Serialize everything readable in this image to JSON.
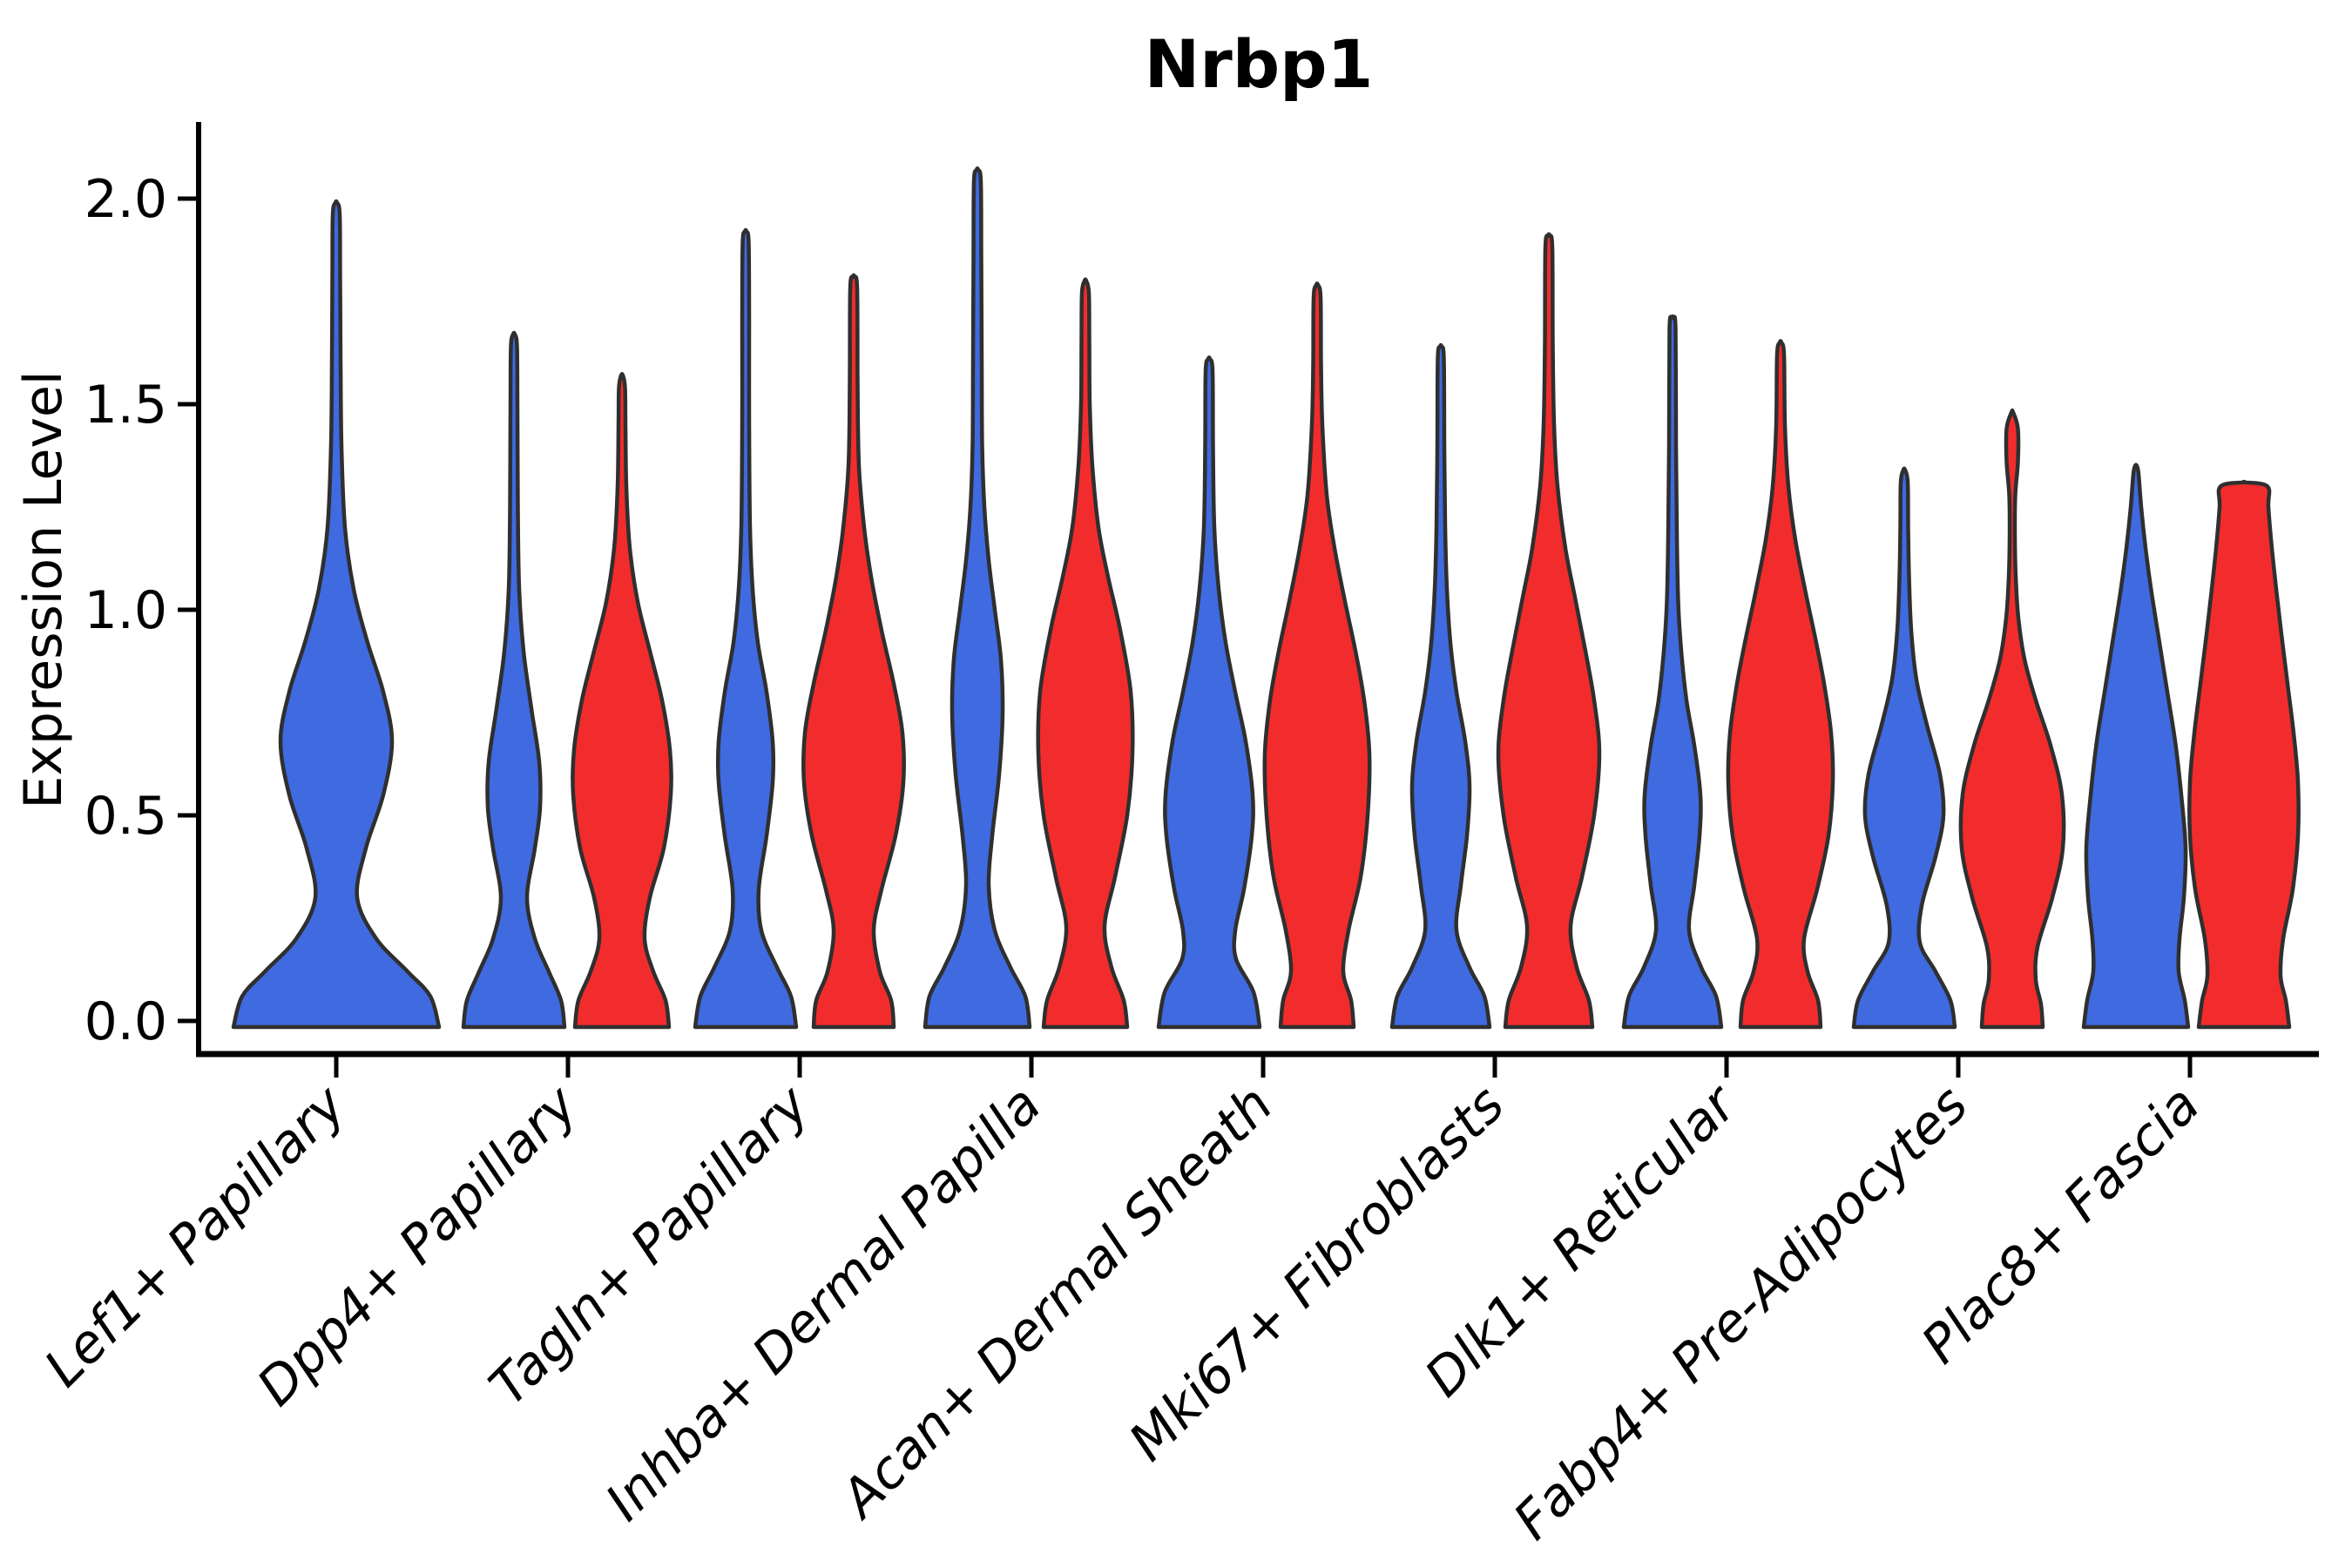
{
  "title": "Nrbp1",
  "axes": {
    "ylabel": "Expression Level",
    "ytick_labels": [
      "0.0",
      "0.5",
      "1.0",
      "1.5",
      "2.0"
    ]
  },
  "style": {
    "background": "#FFFFFF",
    "axis_color": "#000000",
    "violin_stroke": "#2F2F2F",
    "blue": "#3F6AE0",
    "red": "#F22C2C"
  },
  "chart_data": {
    "type": "violin",
    "title": "Nrbp1",
    "xlabel": "",
    "ylabel": "Expression Level",
    "ylim": [
      0,
      2.1
    ],
    "yticks": [
      0,
      0.5,
      1.0,
      1.5,
      2.0
    ],
    "grid": false,
    "legend_position": "none",
    "split_colors": {
      "blue": "#3F6AE0",
      "red": "#F22C2C"
    },
    "categories": [
      "Lef1+ Papillary",
      "Dpp4+ Papillary",
      "Tagln+ Papillary",
      "Inhba+ Dermal Papilla",
      "Acan+ Dermal Sheath",
      "Mki67+ Fibroblasts",
      "Dlk1+ Reticular",
      "Fabp4+ Pre-Adipocytes",
      "Plac8+ Fascia"
    ],
    "violins": [
      {
        "category_index": 0,
        "split": "single",
        "color": "blue",
        "peak": 1.99,
        "profile": [
          [
            0,
            118
          ],
          [
            0.06,
            108
          ],
          [
            0.12,
            82
          ],
          [
            0.2,
            46
          ],
          [
            0.3,
            24
          ],
          [
            0.42,
            34
          ],
          [
            0.55,
            54
          ],
          [
            0.68,
            64
          ],
          [
            0.8,
            54
          ],
          [
            0.92,
            36
          ],
          [
            1.05,
            20
          ],
          [
            1.2,
            10
          ],
          [
            1.4,
            6
          ],
          [
            1.6,
            5
          ],
          [
            1.8,
            4.5
          ],
          [
            1.96,
            4
          ],
          [
            1.99,
            1
          ]
        ]
      },
      {
        "category_index": 1,
        "split": "left",
        "color": "blue",
        "peak": 1.67,
        "profile": [
          [
            0,
            58
          ],
          [
            0.05,
            54
          ],
          [
            0.12,
            40
          ],
          [
            0.2,
            24
          ],
          [
            0.3,
            15
          ],
          [
            0.42,
            24
          ],
          [
            0.52,
            30
          ],
          [
            0.63,
            29
          ],
          [
            0.76,
            20
          ],
          [
            0.9,
            11
          ],
          [
            1.05,
            6
          ],
          [
            1.25,
            4.5
          ],
          [
            1.5,
            4
          ],
          [
            1.64,
            3.5
          ],
          [
            1.67,
            1
          ]
        ]
      },
      {
        "category_index": 1,
        "split": "right",
        "color": "red",
        "peak": 1.57,
        "profile": [
          [
            0,
            54
          ],
          [
            0.05,
            50
          ],
          [
            0.12,
            36
          ],
          [
            0.2,
            26
          ],
          [
            0.3,
            32
          ],
          [
            0.42,
            48
          ],
          [
            0.55,
            56
          ],
          [
            0.66,
            55
          ],
          [
            0.78,
            46
          ],
          [
            0.9,
            32
          ],
          [
            1.02,
            18
          ],
          [
            1.15,
            9
          ],
          [
            1.3,
            5
          ],
          [
            1.45,
            4
          ],
          [
            1.54,
            3.5
          ],
          [
            1.57,
            1
          ]
        ]
      },
      {
        "category_index": 2,
        "split": "left",
        "color": "blue",
        "peak": 1.92,
        "profile": [
          [
            0,
            58
          ],
          [
            0.06,
            52
          ],
          [
            0.13,
            36
          ],
          [
            0.22,
            18
          ],
          [
            0.32,
            15
          ],
          [
            0.45,
            24
          ],
          [
            0.58,
            31
          ],
          [
            0.68,
            31
          ],
          [
            0.8,
            24
          ],
          [
            0.92,
            14
          ],
          [
            1.05,
            8
          ],
          [
            1.2,
            5
          ],
          [
            1.45,
            4
          ],
          [
            1.7,
            4
          ],
          [
            1.89,
            3.5
          ],
          [
            1.92,
            1
          ]
        ]
      },
      {
        "category_index": 2,
        "split": "right",
        "color": "red",
        "peak": 1.81,
        "profile": [
          [
            0,
            46
          ],
          [
            0.05,
            43
          ],
          [
            0.12,
            30
          ],
          [
            0.22,
            23
          ],
          [
            0.32,
            32
          ],
          [
            0.45,
            48
          ],
          [
            0.58,
            57
          ],
          [
            0.7,
            56
          ],
          [
            0.82,
            46
          ],
          [
            0.95,
            32
          ],
          [
            1.08,
            20
          ],
          [
            1.2,
            12
          ],
          [
            1.35,
            6
          ],
          [
            1.55,
            4.5
          ],
          [
            1.78,
            4
          ],
          [
            1.81,
            1
          ]
        ]
      },
      {
        "category_index": 3,
        "split": "left",
        "color": "blue",
        "peak": 2.07,
        "profile": [
          [
            0,
            60
          ],
          [
            0.06,
            55
          ],
          [
            0.13,
            38
          ],
          [
            0.22,
            20
          ],
          [
            0.33,
            13
          ],
          [
            0.45,
            17
          ],
          [
            0.6,
            25
          ],
          [
            0.75,
            29
          ],
          [
            0.88,
            27
          ],
          [
            1.0,
            20
          ],
          [
            1.12,
            13
          ],
          [
            1.25,
            8
          ],
          [
            1.4,
            5.5
          ],
          [
            1.6,
            5
          ],
          [
            1.85,
            4.5
          ],
          [
            2.04,
            4
          ],
          [
            2.07,
            1
          ]
        ]
      },
      {
        "category_index": 3,
        "split": "right",
        "color": "red",
        "peak": 1.8,
        "profile": [
          [
            0,
            48
          ],
          [
            0.05,
            44
          ],
          [
            0.13,
            30
          ],
          [
            0.23,
            22
          ],
          [
            0.35,
            34
          ],
          [
            0.5,
            48
          ],
          [
            0.65,
            54
          ],
          [
            0.8,
            52
          ],
          [
            0.95,
            40
          ],
          [
            1.08,
            26
          ],
          [
            1.2,
            15
          ],
          [
            1.35,
            8
          ],
          [
            1.5,
            5
          ],
          [
            1.65,
            4.5
          ],
          [
            1.77,
            4
          ],
          [
            1.8,
            1
          ]
        ]
      },
      {
        "category_index": 4,
        "split": "left",
        "color": "blue",
        "peak": 1.61,
        "profile": [
          [
            0,
            58
          ],
          [
            0.07,
            51
          ],
          [
            0.15,
            31
          ],
          [
            0.22,
            30
          ],
          [
            0.32,
            40
          ],
          [
            0.45,
            49
          ],
          [
            0.55,
            50
          ],
          [
            0.68,
            42
          ],
          [
            0.8,
            30
          ],
          [
            0.92,
            19
          ],
          [
            1.05,
            11
          ],
          [
            1.2,
            6
          ],
          [
            1.4,
            4.5
          ],
          [
            1.58,
            4
          ],
          [
            1.61,
            1
          ]
        ]
      },
      {
        "category_index": 4,
        "split": "right",
        "color": "red",
        "peak": 1.79,
        "profile": [
          [
            0,
            42
          ],
          [
            0.05,
            39
          ],
          [
            0.12,
            30
          ],
          [
            0.22,
            36
          ],
          [
            0.35,
            50
          ],
          [
            0.5,
            58
          ],
          [
            0.65,
            60
          ],
          [
            0.78,
            54
          ],
          [
            0.9,
            44
          ],
          [
            1.02,
            32
          ],
          [
            1.15,
            20
          ],
          [
            1.28,
            11
          ],
          [
            1.45,
            6
          ],
          [
            1.6,
            4.5
          ],
          [
            1.76,
            4
          ],
          [
            1.79,
            1
          ]
        ]
      },
      {
        "category_index": 5,
        "split": "left",
        "color": "blue",
        "peak": 1.64,
        "profile": [
          [
            0,
            56
          ],
          [
            0.06,
            50
          ],
          [
            0.13,
            33
          ],
          [
            0.22,
            18
          ],
          [
            0.33,
            23
          ],
          [
            0.45,
            30
          ],
          [
            0.57,
            33
          ],
          [
            0.68,
            28
          ],
          [
            0.8,
            18
          ],
          [
            0.92,
            11
          ],
          [
            1.05,
            7
          ],
          [
            1.2,
            5
          ],
          [
            1.4,
            4
          ],
          [
            1.61,
            3.5
          ],
          [
            1.64,
            1
          ]
        ]
      },
      {
        "category_index": 5,
        "split": "right",
        "color": "red",
        "peak": 1.91,
        "profile": [
          [
            0,
            50
          ],
          [
            0.05,
            46
          ],
          [
            0.13,
            32
          ],
          [
            0.23,
            25
          ],
          [
            0.35,
            38
          ],
          [
            0.5,
            52
          ],
          [
            0.65,
            58
          ],
          [
            0.78,
            52
          ],
          [
            0.9,
            42
          ],
          [
            1.03,
            30
          ],
          [
            1.15,
            19
          ],
          [
            1.3,
            10
          ],
          [
            1.45,
            6
          ],
          [
            1.65,
            4.5
          ],
          [
            1.88,
            4
          ],
          [
            1.91,
            1
          ]
        ]
      },
      {
        "category_index": 6,
        "split": "left",
        "color": "blue",
        "peak": 1.71,
        "profile": [
          [
            0,
            56
          ],
          [
            0.06,
            50
          ],
          [
            0.13,
            33
          ],
          [
            0.22,
            19
          ],
          [
            0.33,
            25
          ],
          [
            0.45,
            31
          ],
          [
            0.55,
            32
          ],
          [
            0.67,
            25
          ],
          [
            0.78,
            16
          ],
          [
            0.9,
            10
          ],
          [
            1.02,
            6.5
          ],
          [
            1.18,
            5
          ],
          [
            1.4,
            4
          ],
          [
            1.68,
            3.5
          ],
          [
            1.71,
            1
          ]
        ]
      },
      {
        "category_index": 6,
        "split": "right",
        "color": "red",
        "peak": 1.65,
        "profile": [
          [
            0,
            46
          ],
          [
            0.05,
            43
          ],
          [
            0.12,
            31
          ],
          [
            0.2,
            27
          ],
          [
            0.32,
            42
          ],
          [
            0.45,
            55
          ],
          [
            0.58,
            60
          ],
          [
            0.7,
            58
          ],
          [
            0.82,
            50
          ],
          [
            0.93,
            40
          ],
          [
            1.05,
            28
          ],
          [
            1.17,
            17
          ],
          [
            1.3,
            9
          ],
          [
            1.45,
            5
          ],
          [
            1.62,
            4
          ],
          [
            1.65,
            1
          ]
        ]
      },
      {
        "category_index": 7,
        "split": "left",
        "color": "blue",
        "peak": 1.34,
        "profile": [
          [
            0,
            58
          ],
          [
            0.05,
            53
          ],
          [
            0.12,
            36
          ],
          [
            0.19,
            18
          ],
          [
            0.28,
            20
          ],
          [
            0.4,
            36
          ],
          [
            0.5,
            45
          ],
          [
            0.6,
            41
          ],
          [
            0.72,
            26
          ],
          [
            0.83,
            14
          ],
          [
            0.95,
            8
          ],
          [
            1.08,
            5.5
          ],
          [
            1.2,
            4.5
          ],
          [
            1.31,
            4
          ],
          [
            1.34,
            1
          ]
        ]
      },
      {
        "category_index": 7,
        "split": "right",
        "color": "red",
        "peak": 1.48,
        "profile": [
          [
            0,
            35
          ],
          [
            0.04,
            33
          ],
          [
            0.1,
            27
          ],
          [
            0.18,
            29
          ],
          [
            0.3,
            46
          ],
          [
            0.42,
            58
          ],
          [
            0.55,
            57
          ],
          [
            0.67,
            44
          ],
          [
            0.78,
            27
          ],
          [
            0.88,
            14
          ],
          [
            0.98,
            7
          ],
          [
            1.08,
            4
          ],
          [
            1.18,
            3
          ],
          [
            1.28,
            3.5
          ],
          [
            1.36,
            6.5
          ],
          [
            1.44,
            6.5
          ],
          [
            1.48,
            1
          ]
        ]
      },
      {
        "category_index": 8,
        "split": "left",
        "color": "blue",
        "peak": 1.35,
        "profile": [
          [
            0,
            60
          ],
          [
            0.05,
            56
          ],
          [
            0.12,
            49
          ],
          [
            0.2,
            50
          ],
          [
            0.3,
            55
          ],
          [
            0.42,
            57
          ],
          [
            0.55,
            52
          ],
          [
            0.68,
            45
          ],
          [
            0.8,
            36
          ],
          [
            0.92,
            27
          ],
          [
            1.04,
            18
          ],
          [
            1.15,
            11
          ],
          [
            1.25,
            6
          ],
          [
            1.33,
            3
          ],
          [
            1.35,
            1
          ]
        ]
      },
      {
        "category_index": 8,
        "split": "right",
        "color": "red",
        "peak": 1.31,
        "profile": [
          [
            0,
            52
          ],
          [
            0.05,
            48
          ],
          [
            0.11,
            42
          ],
          [
            0.2,
            45
          ],
          [
            0.32,
            56
          ],
          [
            0.45,
            62
          ],
          [
            0.58,
            62
          ],
          [
            0.7,
            57
          ],
          [
            0.82,
            50
          ],
          [
            0.94,
            43
          ],
          [
            1.05,
            37
          ],
          [
            1.15,
            32
          ],
          [
            1.25,
            28
          ],
          [
            1.3,
            27
          ],
          [
            1.31,
            1
          ]
        ]
      }
    ]
  }
}
